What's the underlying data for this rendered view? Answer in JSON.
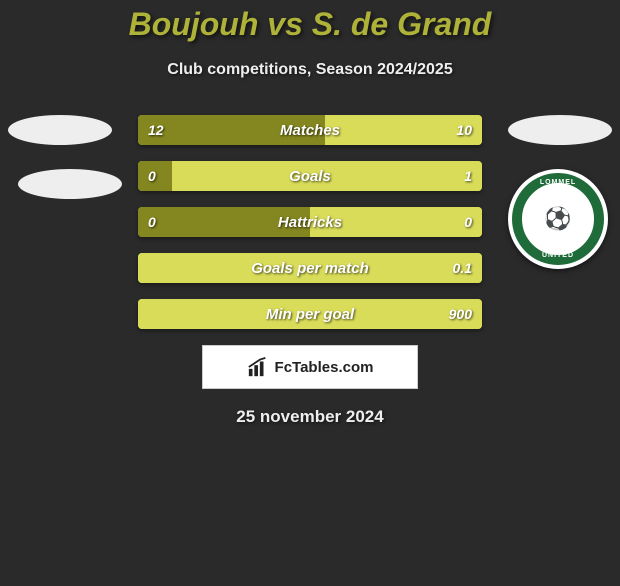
{
  "title": {
    "player1": "Boujouh",
    "vs": " vs ",
    "player2": "S. de Grand"
  },
  "title_color": "#aeb238",
  "subtitle": "Club competitions, Season 2024/2025",
  "date": "25 november 2024",
  "colors": {
    "left": "#84871f",
    "right": "#d9dc59",
    "background": "#2a2a2a"
  },
  "crest": {
    "ring_color": "#1f6b3a",
    "top_text": "LOMMEL",
    "bottom_text": "UNITED",
    "emoji": "⚽"
  },
  "watermark": "FcTables.com",
  "bars": [
    {
      "label": "Matches",
      "left_val": "12",
      "right_val": "10",
      "left_pct": 54.5,
      "right_pct": 45.5
    },
    {
      "label": "Goals",
      "left_val": "0",
      "right_val": "1",
      "left_pct": 10,
      "right_pct": 90
    },
    {
      "label": "Hattricks",
      "left_val": "0",
      "right_val": "0",
      "left_pct": 50,
      "right_pct": 50
    },
    {
      "label": "Goals per match",
      "left_val": "",
      "right_val": "0.1",
      "left_pct": 0,
      "right_pct": 100
    },
    {
      "label": "Min per goal",
      "left_val": "",
      "right_val": "900",
      "left_pct": 0,
      "right_pct": 100
    }
  ]
}
